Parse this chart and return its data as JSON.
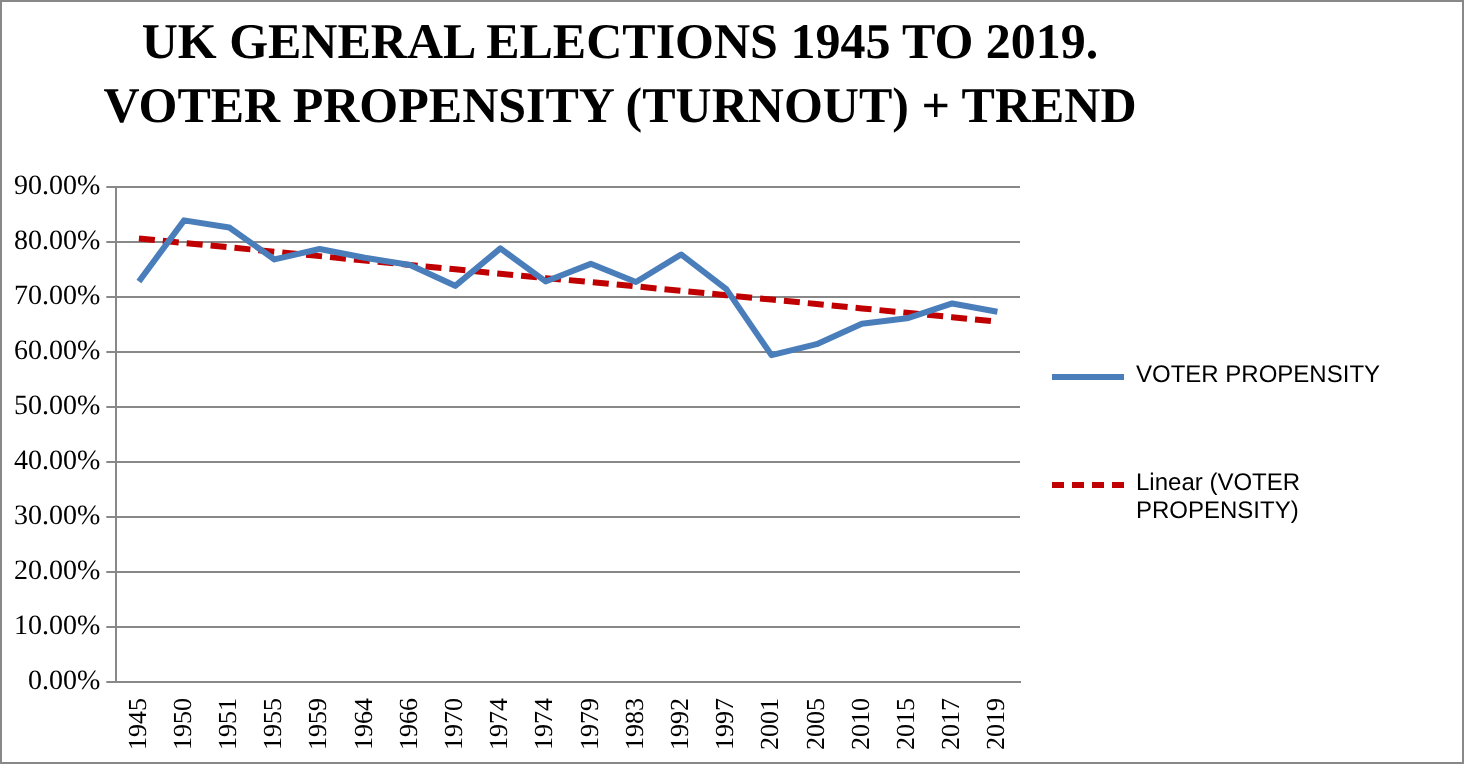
{
  "chart_data": {
    "type": "line",
    "title": "UK GENERAL ELECTIONS 1945 TO 2019. VOTER PROPENSITY (TURNOUT) + TREND",
    "categories": [
      "1945",
      "1950",
      "1951",
      "1955",
      "1959",
      "1964",
      "1966",
      "1970",
      "1974",
      "1974",
      "1979",
      "1983",
      "1992",
      "1997",
      "2001",
      "2005",
      "2010",
      "2015",
      "2017",
      "2019"
    ],
    "series": [
      {
        "name": "VOTER PROPENSITY",
        "color": "#4a7ebb",
        "line_style": "solid",
        "values": [
          72.8,
          83.9,
          82.6,
          76.8,
          78.7,
          77.1,
          75.8,
          72.0,
          78.8,
          72.8,
          76.0,
          72.7,
          77.7,
          71.4,
          59.4,
          61.4,
          65.1,
          66.1,
          68.8,
          67.3
        ]
      },
      {
        "name": "Linear (VOTER PROPENSITY)",
        "color": "#c00000",
        "line_style": "dashed",
        "values": [
          80.6,
          79.8,
          79.0,
          78.2,
          77.4,
          76.6,
          75.8,
          75.0,
          74.2,
          73.4,
          72.7,
          71.9,
          71.1,
          70.3,
          69.5,
          68.7,
          67.9,
          67.1,
          66.3,
          65.5
        ]
      }
    ],
    "ylim": [
      0,
      90
    ],
    "yticks": [
      {
        "value": 0,
        "label": "0.00%"
      },
      {
        "value": 10,
        "label": "10.00%"
      },
      {
        "value": 20,
        "label": "20.00%"
      },
      {
        "value": 30,
        "label": "30.00%"
      },
      {
        "value": 40,
        "label": "40.00%"
      },
      {
        "value": 50,
        "label": "50.00%"
      },
      {
        "value": 60,
        "label": "60.00%"
      },
      {
        "value": 70,
        "label": "70.00%"
      },
      {
        "value": 80,
        "label": "80.00%"
      },
      {
        "value": 90,
        "label": "90.00%"
      }
    ],
    "grid": "y",
    "legend": "right",
    "marker": "none"
  }
}
